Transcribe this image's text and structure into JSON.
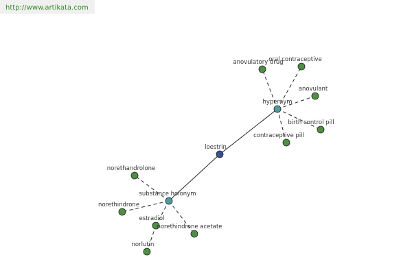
{
  "url": "http://www.artikata.com",
  "nodes": [
    {
      "label": "loestrin"
    },
    {
      "label": "hypernym"
    },
    {
      "label": "substance holonym"
    },
    {
      "label": "anovulatory drug"
    },
    {
      "label": "oral contraceptive"
    },
    {
      "label": "anovulant"
    },
    {
      "label": "birth control pill"
    },
    {
      "label": "contraceptive pill"
    },
    {
      "label": "norethandrolone"
    },
    {
      "label": "norethindrone"
    },
    {
      "label": "estradiol"
    },
    {
      "label": "norethindrone acetate"
    },
    {
      "label": "norlutin"
    }
  ]
}
